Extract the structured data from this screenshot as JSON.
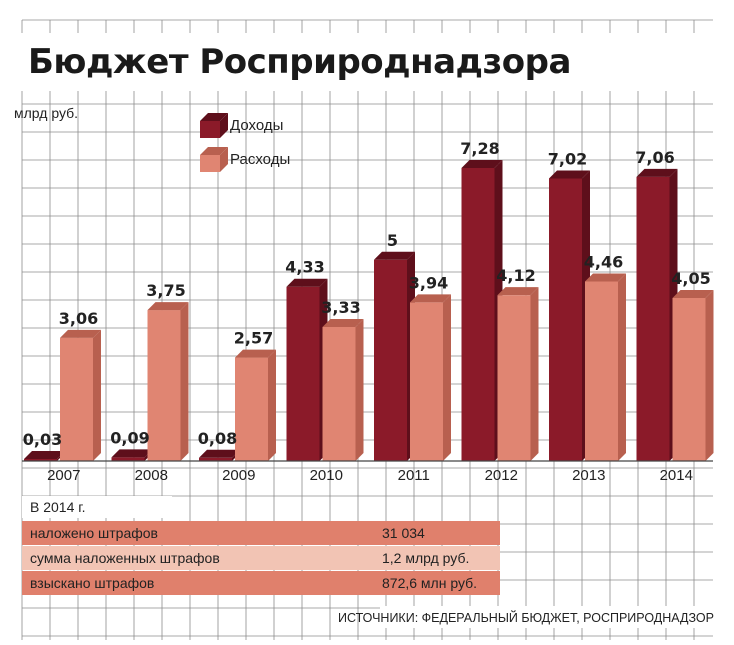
{
  "title": "Бюджет Росприроднадзора",
  "unit": "млрд руб.",
  "legend": {
    "income": "Доходы",
    "expense": "Расходы"
  },
  "colors": {
    "income": "#8b1a29",
    "income_dark": "#5e0f1b",
    "expense": "#e08572",
    "expense_dark": "#b8604f",
    "table_dark": "#e0806c",
    "table_light": "#f2c4b4",
    "grid": "#8c8c8c"
  },
  "chart_data": {
    "type": "bar",
    "categories": [
      "2007",
      "2008",
      "2009",
      "2010",
      "2011",
      "2012",
      "2013",
      "2014"
    ],
    "series": [
      {
        "name": "Доходы",
        "values": [
          0.03,
          0.09,
          0.08,
          4.33,
          5,
          7.28,
          7.02,
          7.06
        ],
        "labels": [
          "0,03",
          "0,09",
          "0,08",
          "4,33",
          "5",
          "7,28",
          "7,02",
          "7,06"
        ]
      },
      {
        "name": "Расходы",
        "values": [
          3.06,
          3.75,
          2.57,
          3.33,
          3.94,
          4.12,
          4.46,
          4.05
        ],
        "labels": [
          "3,06",
          "3,75",
          "2,57",
          "3,33",
          "3,94",
          "4,12",
          "4,46",
          "4,05"
        ]
      }
    ],
    "title": "Бюджет Росприроднадзора",
    "ylabel": "млрд руб.",
    "ylim": [
      0,
      8.4
    ],
    "grid": true,
    "legend": "top-left"
  },
  "note": {
    "heading": "В 2014 г.",
    "rows": [
      {
        "label": "наложено штрафов",
        "value": "31 034"
      },
      {
        "label": "сумма наложенных штрафов",
        "value": "1,2 млрд руб."
      },
      {
        "label": "взыскано штрафов",
        "value": "872,6 млн руб."
      }
    ]
  },
  "source": "ИСТОЧНИКИ: ФЕДЕРАЛЬНЫЙ БЮДЖЕТ, РОСПРИРОДНАДЗОР"
}
